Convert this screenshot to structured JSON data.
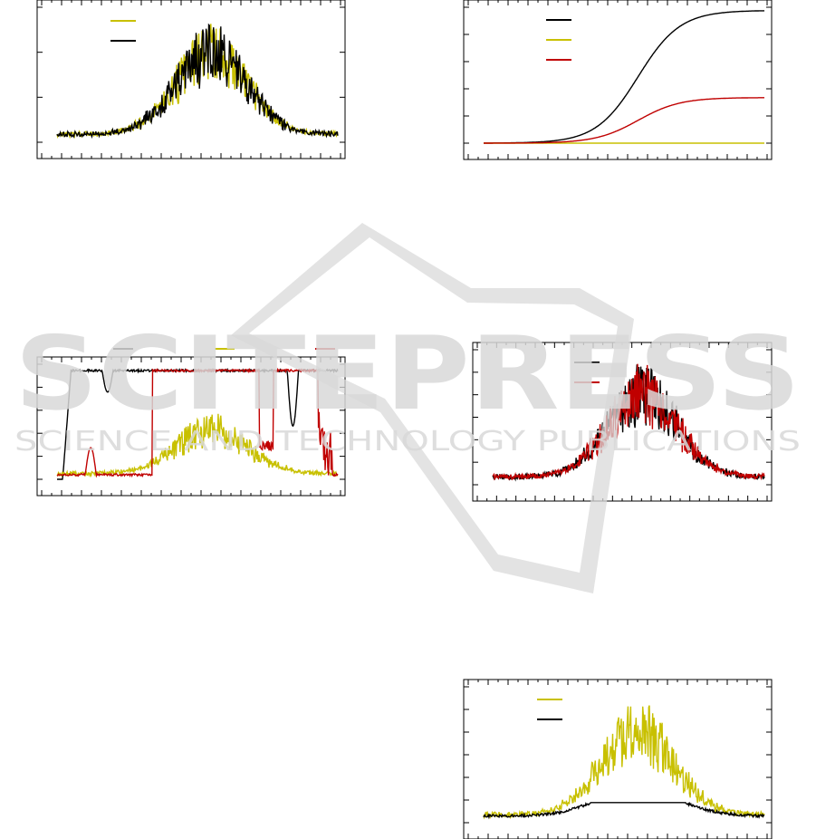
{
  "colors": {
    "black": "#000000",
    "yellow": "#c8c000",
    "red": "#c00000",
    "watermark": "#d9d9d9"
  },
  "watermark": {
    "title": "SCITEPRESS",
    "subtitle": "SCIENCE AND TECHNOLOGY PUBLICATIONS"
  },
  "chart_data": [
    {
      "id": "panel-top-left",
      "type": "line",
      "ylim": [
        0,
        1
      ],
      "grid": false,
      "legend": "top-left",
      "series": [
        {
          "color": "yellow",
          "legend_marker": true,
          "shape": "noisy-bell",
          "base": 0.04,
          "peak": 0.88
        },
        {
          "color": "black",
          "legend_marker": true,
          "shape": "noisy-bell",
          "base": 0.04,
          "peak": 0.88
        }
      ]
    },
    {
      "id": "panel-top-right",
      "type": "line",
      "ylim": [
        0,
        1
      ],
      "grid": false,
      "legend": "top-left",
      "series": [
        {
          "color": "black",
          "legend_marker": true,
          "shape": "sigmoid",
          "start": 0.0,
          "end": 0.99
        },
        {
          "color": "yellow",
          "legend_marker": true,
          "shape": "flat",
          "value": 0.0
        },
        {
          "color": "red",
          "legend_marker": true,
          "shape": "sigmoid",
          "start": 0.0,
          "end": 0.34
        }
      ]
    },
    {
      "id": "panel-middle-left",
      "type": "line",
      "ylim": [
        0,
        1
      ],
      "grid": false,
      "legend": "top-outside",
      "series": [
        {
          "color": "black",
          "legend_marker": true,
          "shape": "plateau-high",
          "value": 0.97
        },
        {
          "color": "yellow",
          "legend_marker": true,
          "shape": "noisy-bell",
          "base": 0.03,
          "peak": 0.55
        },
        {
          "color": "red",
          "legend_marker": true,
          "shape": "step-high",
          "value": 0.97
        }
      ]
    },
    {
      "id": "panel-middle-right",
      "type": "line",
      "ylim": [
        0,
        1
      ],
      "grid": false,
      "legend": "top-center",
      "series": [
        {
          "color": "black",
          "legend_marker": true,
          "shape": "noisy-bell",
          "base": 0.04,
          "peak": 0.9
        },
        {
          "color": "red",
          "legend_marker": true,
          "shape": "noisy-bell",
          "base": 0.04,
          "peak": 0.9
        }
      ]
    },
    {
      "id": "panel-bottom-right",
      "type": "line",
      "ylim": [
        0,
        1
      ],
      "grid": false,
      "legend": "top-left",
      "series": [
        {
          "color": "yellow",
          "legend_marker": true,
          "shape": "noisy-bell",
          "base": 0.04,
          "peak": 0.9
        },
        {
          "color": "black",
          "legend_marker": true,
          "shape": "clipped-bell",
          "base": 0.04,
          "cap": 0.15
        }
      ]
    }
  ]
}
